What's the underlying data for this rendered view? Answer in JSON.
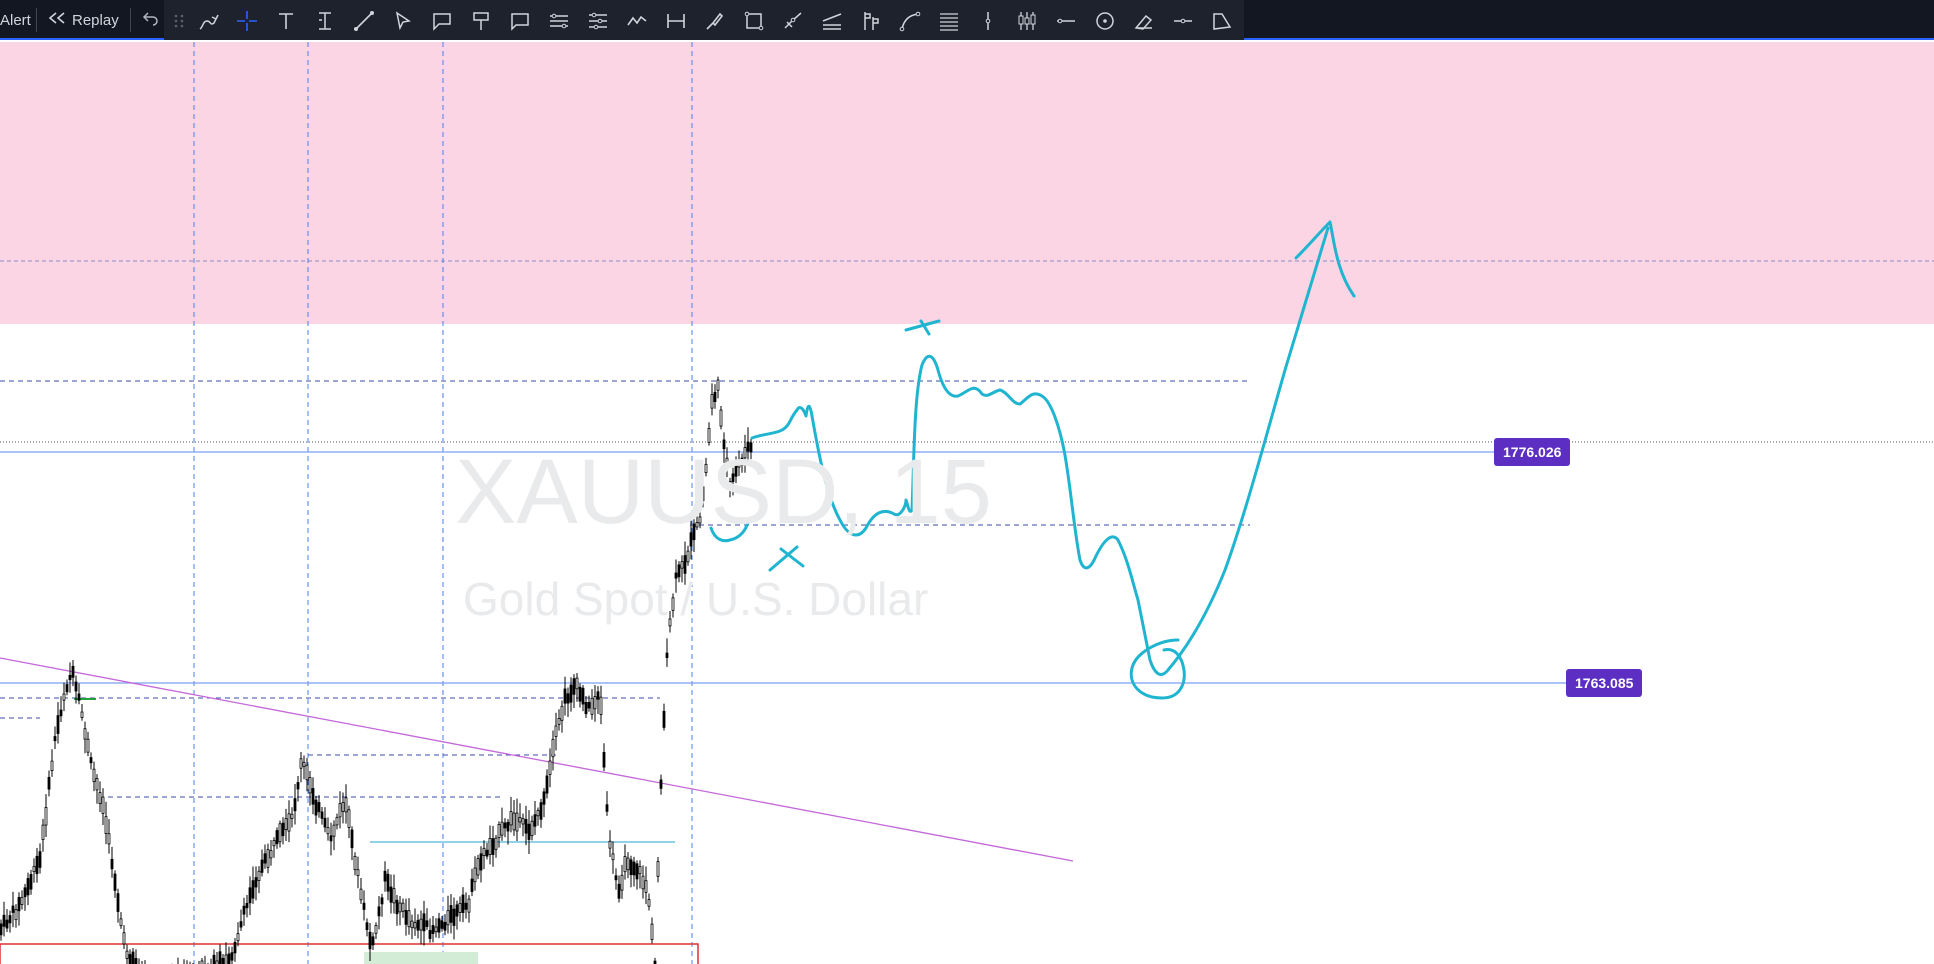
{
  "topbar": {
    "alert_label": "Alert",
    "replay_label": "Replay",
    "undo_icon": "undo-icon",
    "drawing_tools": [
      "drag-handle-icon",
      "brush-icon",
      "crosshair-icon",
      "text-icon",
      "anchored-text-icon",
      "trend-line-icon",
      "cursor-arrow-icon",
      "callout-icon",
      "flag-note-icon",
      "comment-icon",
      "parallel-channel-icon",
      "pitchfork-icon",
      "path-icon",
      "date-range-icon",
      "pen-line-icon",
      "rectangle-icon",
      "polyline-icon",
      "fib-fan-icon",
      "flag-marks-icon",
      "arc-icon",
      "fib-retracement-icon",
      "vertical-line-icon",
      "bars-pattern-icon",
      "horizontal-ray-icon",
      "ellipse-icon",
      "eraser-icon",
      "horizontal-line-icon",
      "rotated-shape-icon"
    ]
  },
  "chart": {
    "watermark_symbol": "XAUUSD, 15",
    "watermark_name": "Gold Spot / U.S. Dollar",
    "price_labels": [
      "1776.026",
      "1763.085"
    ],
    "colors": {
      "resistance_zone": "#fbd5e3",
      "annotation": "#1fb5d0",
      "price_line": "#7b9ff2",
      "trendline": "#c467d9",
      "price_label_bg": "#5c2fc2"
    }
  }
}
